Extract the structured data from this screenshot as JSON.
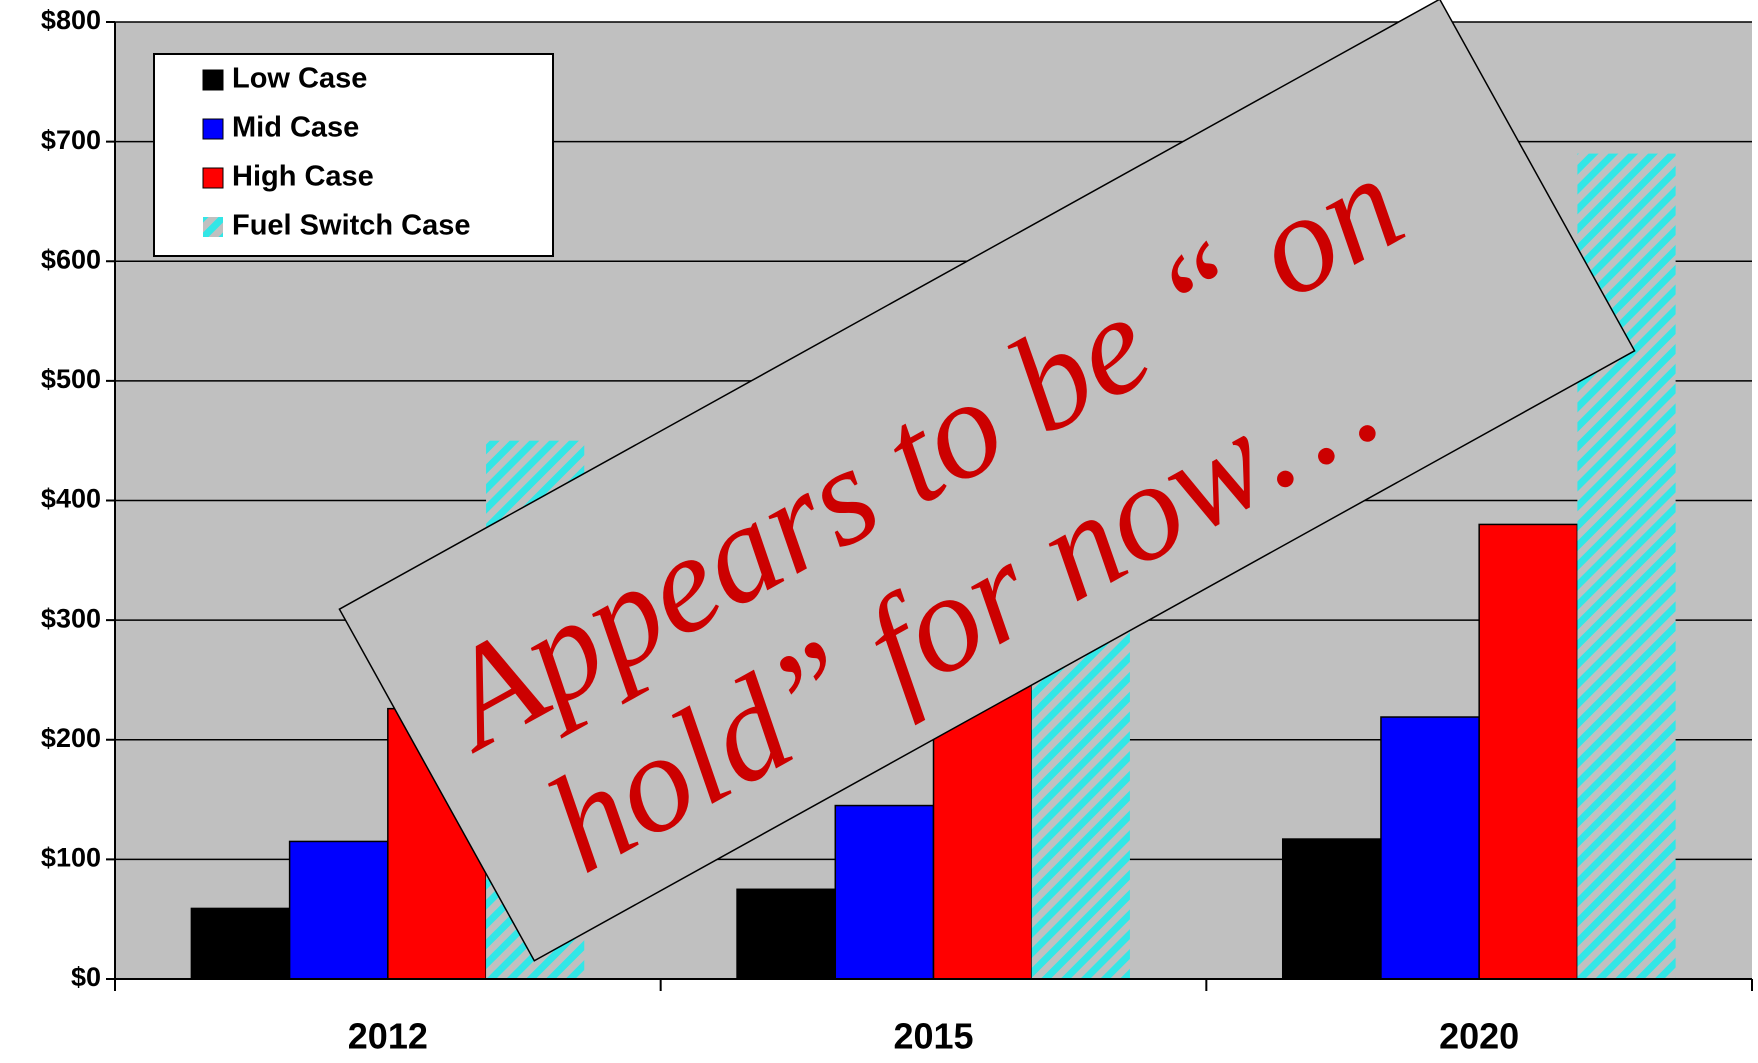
{
  "chart_data": {
    "type": "bar",
    "categories": [
      "2012",
      "2015",
      "2020"
    ],
    "series": [
      {
        "name": "Low Case",
        "color": "#000000",
        "values": [
          59,
          75,
          117
        ]
      },
      {
        "name": "Mid Case",
        "color": "#0000ff",
        "values": [
          115,
          145,
          219
        ]
      },
      {
        "name": "High Case",
        "color": "#ff0000",
        "values": [
          226,
          260,
          380
        ]
      },
      {
        "name": "Fuel Switch Case",
        "color": "#33e6e6",
        "pattern": "hatch",
        "values": [
          450,
          300,
          690
        ]
      }
    ],
    "ylim": [
      0,
      800
    ],
    "yticks": [
      {
        "value": 0,
        "label": "$0"
      },
      {
        "value": 100,
        "label": "$100"
      },
      {
        "value": 200,
        "label": "$200"
      },
      {
        "value": 300,
        "label": "$300"
      },
      {
        "value": 400,
        "label": "$400"
      },
      {
        "value": 500,
        "label": "$500"
      },
      {
        "value": 600,
        "label": "$600"
      },
      {
        "value": 700,
        "label": "$700"
      },
      {
        "value": 800,
        "label": "$800"
      }
    ],
    "grid": true,
    "legend": "upper left",
    "annotation": [
      "Appears to be “ on",
      "hold”  for now…"
    ]
  }
}
